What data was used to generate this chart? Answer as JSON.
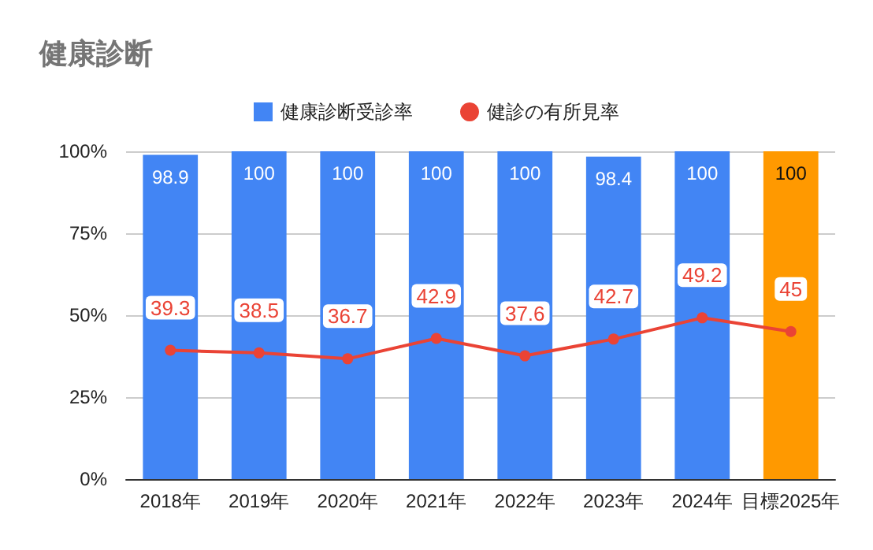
{
  "chart_data": {
    "type": "bar",
    "title": "健康診断",
    "categories": [
      "2018年",
      "2019年",
      "2020年",
      "2021年",
      "2022年",
      "2023年",
      "2024年",
      "目標2025年"
    ],
    "series": [
      {
        "name": "健康診断受診率",
        "color": "#4285f4",
        "colors": [
          "#4285f4",
          "#4285f4",
          "#4285f4",
          "#4285f4",
          "#4285f4",
          "#4285f4",
          "#4285f4",
          "#ff9900"
        ],
        "values": [
          98.9,
          100,
          100,
          100,
          100,
          98.4,
          100,
          100
        ]
      },
      {
        "name": "健診の有所見率",
        "type": "line",
        "color": "#ea4335",
        "values": [
          39.3,
          38.5,
          36.7,
          42.9,
          37.6,
          42.7,
          49.2,
          45
        ]
      }
    ],
    "ylim": [
      0,
      100
    ],
    "yticks": [
      {
        "value": 0,
        "label": "0%"
      },
      {
        "value": 25,
        "label": "25%"
      },
      {
        "value": 50,
        "label": "50%"
      },
      {
        "value": 75,
        "label": "75%"
      },
      {
        "value": 100,
        "label": "100%"
      }
    ],
    "grid": "y",
    "legend": "top",
    "data_labels": true,
    "marker": "circle",
    "line_style": "solid"
  }
}
